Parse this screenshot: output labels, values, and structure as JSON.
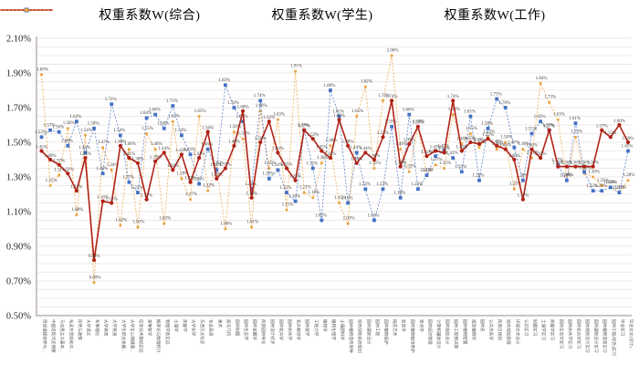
{
  "legend": {
    "items": [
      {
        "label": "权重系数W(综合)",
        "color": "#b02318",
        "marker": "circle",
        "dash": "solid"
      },
      {
        "label": "权重系数W(学生)",
        "color": "#4472c4",
        "marker": "square",
        "dash": "dashed"
      },
      {
        "label": "权重系数W(工作)",
        "color": "#e8a33d",
        "marker": "dot",
        "dash": "dashed"
      }
    ]
  },
  "colors": {
    "grid": "#f2e8e4",
    "axis": "#cbc5c2",
    "tick_text": "#262626",
    "data_label": "#404040",
    "category_text": "#595959",
    "background": "#ffffff"
  },
  "chart_data": {
    "type": "line",
    "title": "",
    "xlabel": "",
    "ylabel": "",
    "ylim": [
      0.5,
      2.1
    ],
    "y_tick_step": 0.2,
    "y_minor_step": 0.05,
    "y_tick_labels": [
      "0.50%",
      "0.70%",
      "0.90%",
      "1.10%",
      "1.30%",
      "1.50%",
      "1.70%",
      "1.90%",
      "2.10%"
    ],
    "grid": true,
    "legend_position": "top",
    "value_suffix": "%",
    "categories": [
      "思想道德修养与…",
      "中国近现代史纲要",
      "马克思主义基本…",
      "毛泽东思想和中…",
      "形势与政策",
      "大学语文",
      "军事理论",
      "大学体育",
      "大学英语",
      "大学生职业发展…",
      "大学生心理健康…",
      "信息技术基础实验",
      "高等数学",
      "概率论与数理统计",
      "物理学及实验",
      "土壤学",
      "测量学",
      "大学化学",
      "东西方文化史",
      "专业英语",
      "美术",
      "画法几何",
      "园林制图",
      "园林生态学",
      "园林苗圃学",
      "风景园林导论",
      "园林设计初步",
      "园林花卉学",
      "园林树木学",
      "花卉栽培学",
      "园林美学",
      "工程力学",
      "植物学",
      "植物生理学",
      "土壤肥料学",
      "园林植物遗传育种",
      "城市绿地系统规划",
      "园林建筑设计",
      "园林工程",
      "园林植物保护",
      "插花艺术",
      "盆景学",
      "园林植物栽培养护",
      "草坪学",
      "园林经济管理",
      "计算机辅助设计",
      "园林规划设计",
      "园林工程预决算",
      "园林植物配置",
      "观赏植物学",
      "园林史",
      "公共关系学",
      "风景区规划",
      "城市规划原理",
      "环境艺术设计",
      "认识实习",
      "制图实习",
      "土壤学实习",
      "测量学实习",
      "园林生态学实习",
      "园林树木学实习",
      "园林花卉学实习",
      "园林规划设计实习",
      "园林建筑设计实习",
      "园林植物造景实习",
      "园林工程(综合)实习",
      "毕业实习",
      "毕业论文(设计)…"
    ],
    "series": [
      {
        "name": "权重系数W(综合)",
        "color": "#b02318",
        "marker": "circle",
        "dash": "solid",
        "values": [
          1.45,
          1.4,
          1.37,
          1.32,
          1.22,
          1.41,
          0.82,
          1.16,
          1.15,
          1.48,
          1.41,
          1.38,
          1.17,
          1.39,
          1.44,
          1.34,
          1.43,
          1.27,
          1.41,
          1.56,
          1.29,
          1.35,
          1.48,
          1.68,
          1.18,
          1.5,
          1.62,
          1.44,
          1.35,
          1.28,
          1.57,
          1.52,
          1.45,
          1.41,
          1.63,
          1.48,
          1.38,
          1.44,
          1.4,
          1.53,
          1.74,
          1.36,
          1.49,
          1.59,
          1.42,
          1.45,
          1.44,
          1.74,
          1.45,
          1.5,
          1.49,
          1.52,
          1.48,
          1.46,
          1.4,
          1.17,
          1.46,
          1.41,
          1.57,
          1.36,
          1.36,
          1.36,
          1.36,
          1.36,
          1.57,
          1.53,
          1.6,
          1.5
        ]
      },
      {
        "name": "权重系数W(学生)",
        "color": "#4472c4",
        "marker": "square",
        "dash": "dashed",
        "values": [
          1.53,
          1.57,
          1.56,
          1.48,
          1.62,
          1.44,
          1.58,
          1.32,
          1.72,
          1.54,
          1.27,
          1.21,
          1.64,
          1.66,
          1.58,
          1.71,
          1.54,
          1.43,
          1.26,
          1.46,
          1.34,
          1.83,
          1.7,
          1.62,
          1.23,
          1.74,
          1.29,
          1.34,
          1.21,
          1.16,
          1.57,
          1.35,
          1.05,
          1.8,
          1.65,
          1.15,
          1.44,
          1.23,
          1.05,
          1.23,
          1.59,
          1.18,
          1.66,
          1.23,
          1.31,
          1.42,
          1.45,
          1.41,
          1.33,
          1.65,
          1.28,
          1.58,
          1.75,
          1.7,
          1.47,
          1.28,
          1.55,
          1.62,
          1.57,
          1.37,
          1.28,
          1.61,
          1.33,
          1.22,
          1.22,
          1.24,
          1.21,
          1.45
        ]
      },
      {
        "name": "权重系数W(工作)",
        "color": "#e8a33d",
        "marker": "dot",
        "dash": "dashed",
        "values": [
          1.89,
          1.25,
          1.31,
          1.58,
          1.08,
          1.54,
          0.69,
          1.47,
          1.34,
          1.02,
          1.46,
          1.01,
          1.55,
          1.46,
          1.03,
          1.62,
          1.29,
          1.17,
          1.65,
          1.22,
          1.35,
          1.0,
          1.56,
          1.52,
          1.01,
          1.68,
          1.35,
          1.63,
          1.11,
          1.91,
          1.21,
          1.18,
          1.38,
          1.48,
          1.15,
          1.03,
          1.65,
          1.82,
          1.35,
          1.74,
          2.0,
          1.46,
          1.33,
          1.59,
          1.31,
          1.37,
          1.35,
          1.66,
          1.49,
          1.55,
          1.47,
          1.53,
          1.46,
          1.5,
          1.23,
          1.46,
          1.41,
          1.84,
          1.73,
          1.63,
          1.28,
          1.53,
          1.32,
          1.3,
          1.25,
          1.24,
          1.21,
          1.28
        ]
      }
    ]
  }
}
